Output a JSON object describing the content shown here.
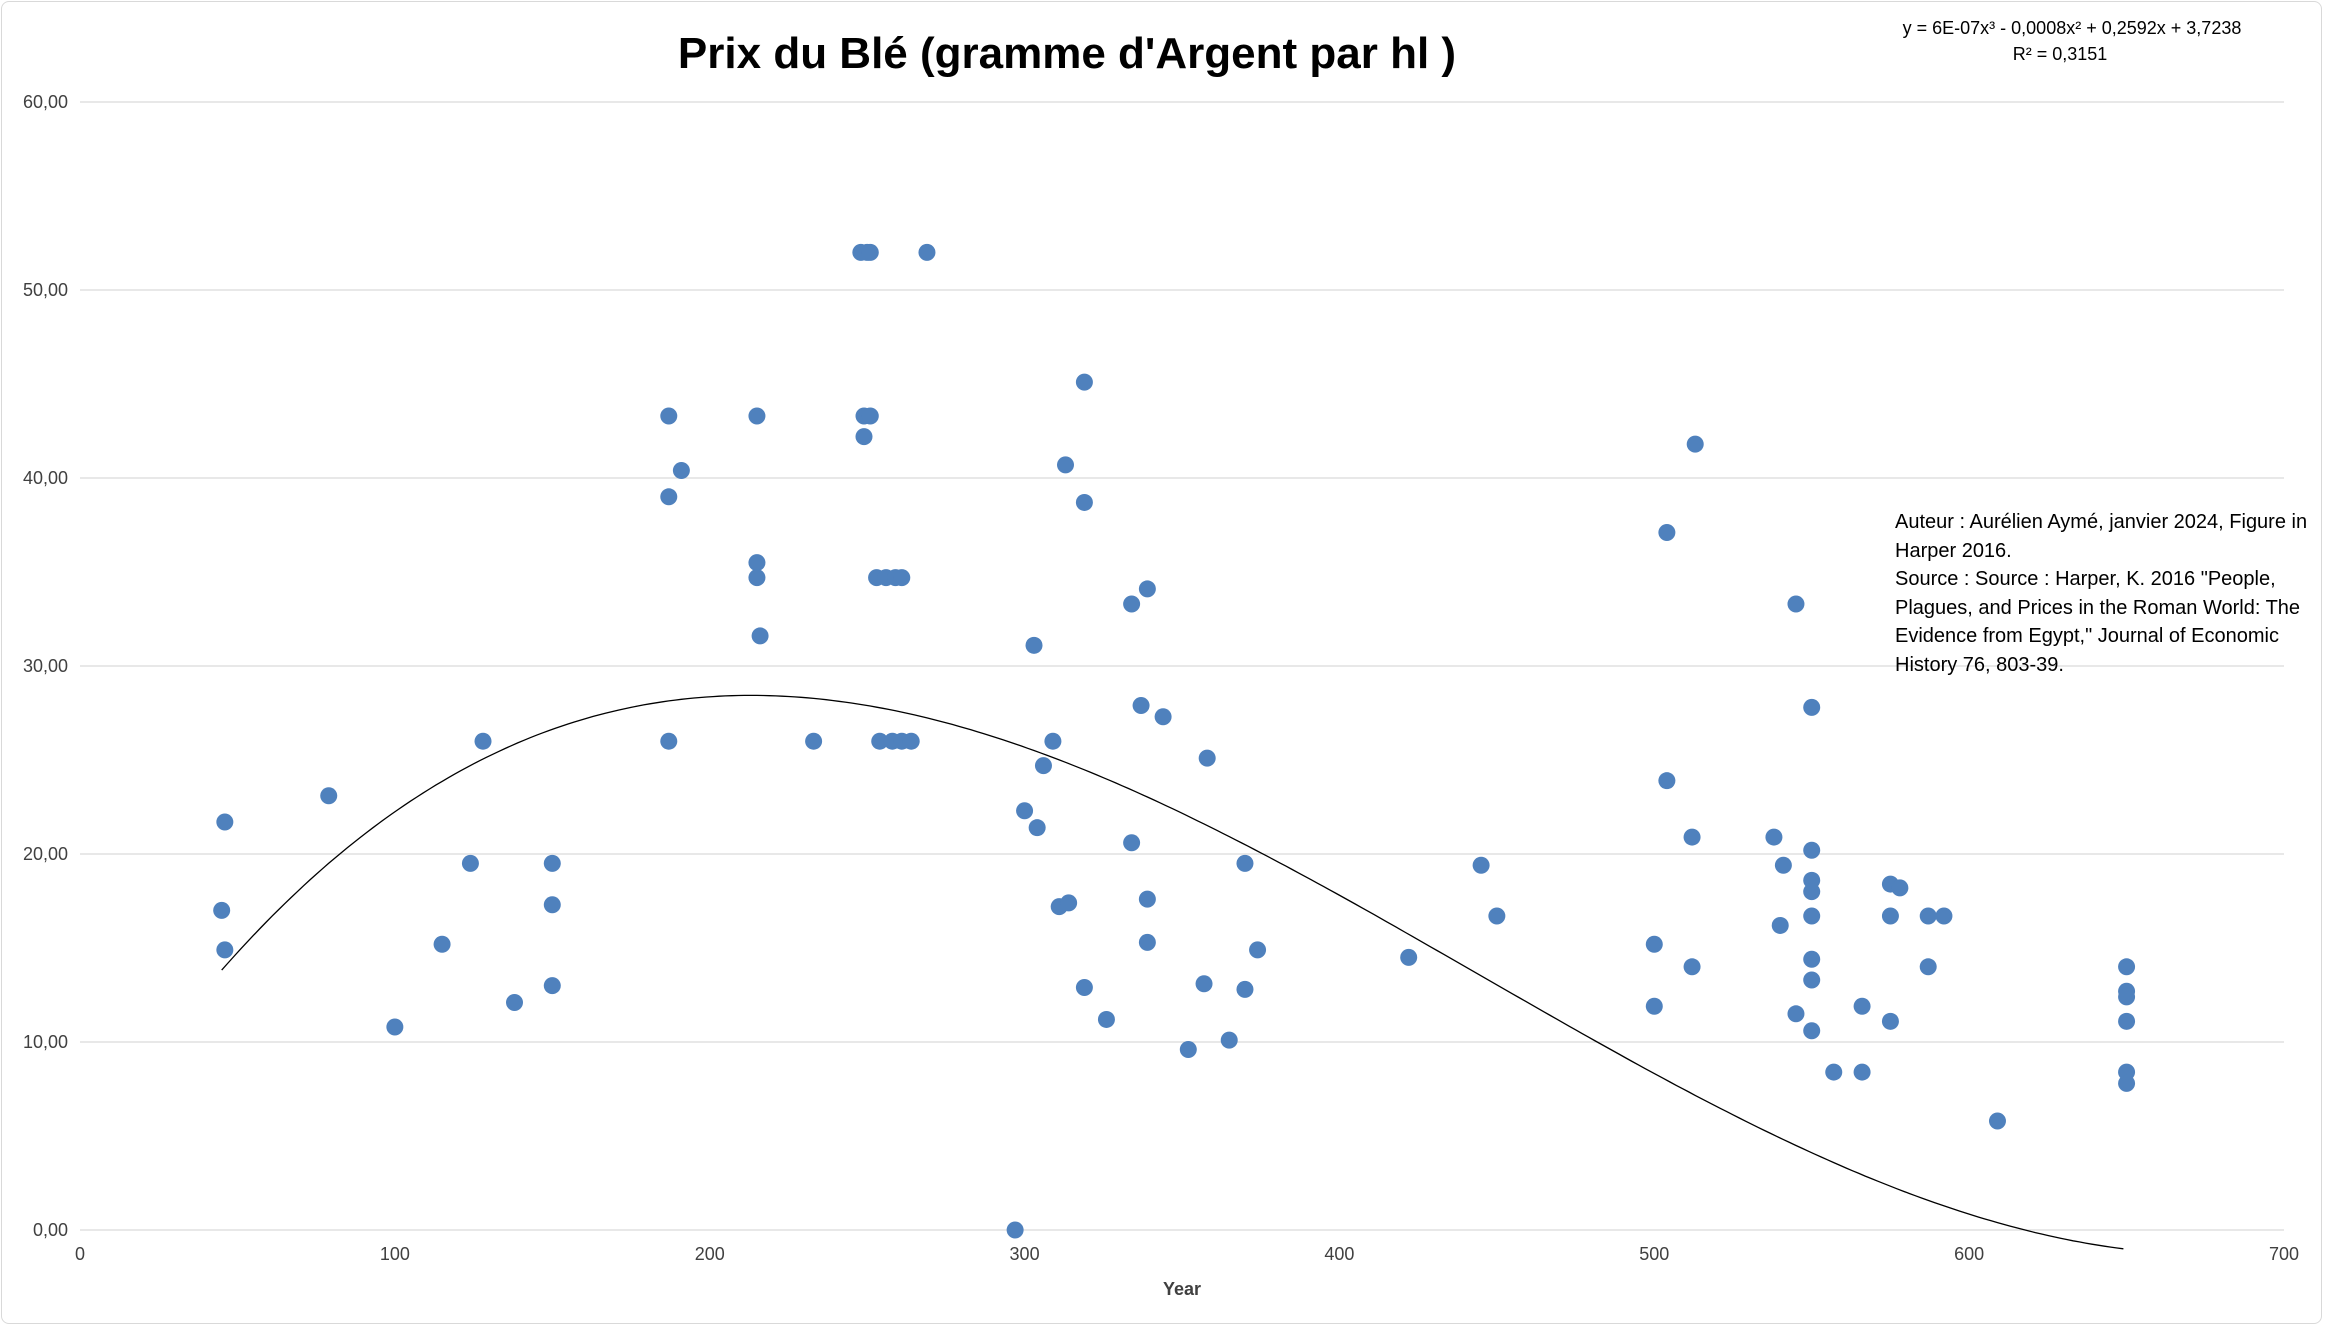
{
  "chart_data": {
    "type": "scatter",
    "title": "Prix du Blé (gramme d'Argent par hl )",
    "xlabel": "Year",
    "ylabel": "",
    "xlim": [
      0,
      700
    ],
    "ylim": [
      0,
      60
    ],
    "xticks": [
      "0",
      "100",
      "200",
      "300",
      "400",
      "500",
      "600",
      "700"
    ],
    "yticks": [
      "0,00",
      "10,00",
      "20,00",
      "30,00",
      "40,00",
      "50,00",
      "60,00"
    ],
    "grid": "horizontal",
    "marker_color": "#4f81bd",
    "trendline": {
      "type": "polynomial",
      "coefficients": [
        3.7238,
        0.2592,
        -0.0008,
        6e-07
      ],
      "equation": "y = 6E-07x³ - 0,0008x² + 0,2592x + 3,7238",
      "r2": "R² = 0,3151",
      "x_range": [
        45,
        650
      ]
    },
    "points": [
      [
        45,
        17.0
      ],
      [
        46,
        21.7
      ],
      [
        46,
        14.9
      ],
      [
        79,
        23.1
      ],
      [
        100,
        10.8
      ],
      [
        115,
        15.2
      ],
      [
        124,
        19.5
      ],
      [
        128,
        26.0
      ],
      [
        138,
        12.1
      ],
      [
        150,
        19.5
      ],
      [
        150,
        17.3
      ],
      [
        150,
        13.0
      ],
      [
        187,
        43.3
      ],
      [
        187,
        39.0
      ],
      [
        187,
        26.0
      ],
      [
        191,
        40.4
      ],
      [
        215,
        43.3
      ],
      [
        215,
        35.5
      ],
      [
        215,
        34.7
      ],
      [
        216,
        31.6
      ],
      [
        233,
        26.0
      ],
      [
        248,
        52.0
      ],
      [
        249,
        43.3
      ],
      [
        249,
        42.2
      ],
      [
        250,
        52.0
      ],
      [
        251,
        52.0
      ],
      [
        251,
        43.3
      ],
      [
        253,
        34.7
      ],
      [
        254,
        26.0
      ],
      [
        256,
        34.7
      ],
      [
        258,
        26.0
      ],
      [
        259,
        34.7
      ],
      [
        261,
        34.7
      ],
      [
        261,
        26.0
      ],
      [
        264,
        26.0
      ],
      [
        269,
        52.0
      ],
      [
        297,
        0.0
      ],
      [
        300,
        22.3
      ],
      [
        303,
        31.1
      ],
      [
        304,
        21.4
      ],
      [
        306,
        24.7
      ],
      [
        309,
        26.0
      ],
      [
        311,
        17.2
      ],
      [
        313,
        40.7
      ],
      [
        314,
        17.4
      ],
      [
        319,
        45.1
      ],
      [
        319,
        38.7
      ],
      [
        319,
        12.9
      ],
      [
        326,
        11.2
      ],
      [
        334,
        33.3
      ],
      [
        334,
        20.6
      ],
      [
        337,
        27.9
      ],
      [
        339,
        34.1
      ],
      [
        339,
        17.6
      ],
      [
        339,
        15.3
      ],
      [
        344,
        27.3
      ],
      [
        352,
        9.6
      ],
      [
        357,
        13.1
      ],
      [
        358,
        25.1
      ],
      [
        365,
        10.1
      ],
      [
        370,
        19.5
      ],
      [
        370,
        12.8
      ],
      [
        374,
        14.9
      ],
      [
        422,
        14.5
      ],
      [
        445,
        19.4
      ],
      [
        450,
        16.7
      ],
      [
        500,
        15.2
      ],
      [
        500,
        11.9
      ],
      [
        504,
        37.1
      ],
      [
        504,
        23.9
      ],
      [
        512,
        20.9
      ],
      [
        512,
        14.0
      ],
      [
        513,
        41.8
      ],
      [
        538,
        20.9
      ],
      [
        540,
        16.2
      ],
      [
        541,
        19.4
      ],
      [
        545,
        33.3
      ],
      [
        545,
        11.5
      ],
      [
        550,
        27.8
      ],
      [
        550,
        20.2
      ],
      [
        550,
        18.6
      ],
      [
        550,
        18.0
      ],
      [
        550,
        16.7
      ],
      [
        550,
        14.4
      ],
      [
        550,
        13.3
      ],
      [
        550,
        10.6
      ],
      [
        557,
        8.4
      ],
      [
        566,
        11.9
      ],
      [
        566,
        8.4
      ],
      [
        575,
        18.4
      ],
      [
        575,
        16.7
      ],
      [
        575,
        11.1
      ],
      [
        578,
        18.2
      ],
      [
        587,
        16.7
      ],
      [
        587,
        14.0
      ],
      [
        592,
        16.7
      ],
      [
        609,
        5.8
      ],
      [
        650,
        14.0
      ],
      [
        650,
        12.7
      ],
      [
        650,
        12.4
      ],
      [
        650,
        11.1
      ],
      [
        650,
        8.4
      ],
      [
        650,
        7.8
      ]
    ]
  },
  "annotation": {
    "lines": [
      "Auteur : Aurélien Aymé, janvier 2024, Figure in Harper 2016.",
      "Source : Source : Harper, K. 2016 \"People, Plagues, and Prices in the Roman World: The Evidence from Egypt,\" Journal of Economic History 76, 803-39."
    ]
  }
}
